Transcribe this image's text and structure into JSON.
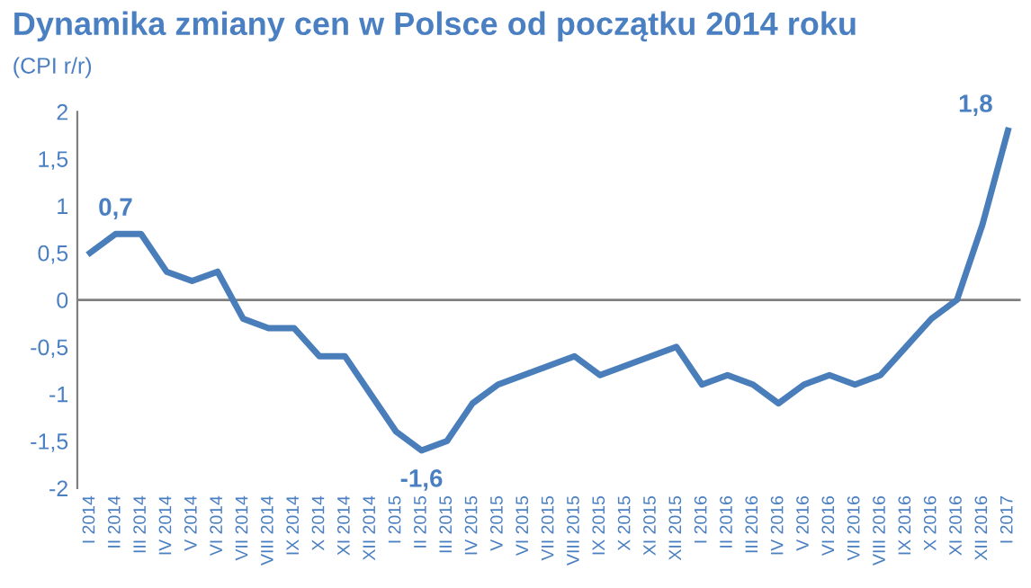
{
  "chart_data": {
    "type": "line",
    "title": "Dynamika zmiany cen w Polsce od początku 2014 roku",
    "subtitle": "(CPI r/r)",
    "categories": [
      "I 2014",
      "II 2014",
      "III 2014",
      "IV 2014",
      "V 2014",
      "VI 2014",
      "VII 2014",
      "VIII 2014",
      "IX 2014",
      "X 2014",
      "XI 2014",
      "XII 2014",
      "I 2015",
      "II 2015",
      "III 2015",
      "IV 2015",
      "V 2015",
      "VI 2015",
      "VII 2015",
      "VIII 2015",
      "IX 2015",
      "X 2015",
      "XI 2015",
      "XII 2015",
      "I 2016",
      "II 2016",
      "III 2016",
      "IV 2016",
      "V 2016",
      "VI 2016",
      "VII 2016",
      "VIII 2016",
      "IX 2016",
      "X 2016",
      "XI 2016",
      "XII 2016",
      "I 2017"
    ],
    "series": [
      {
        "color": "#4a7ebb",
        "values": [
          0.5,
          0.7,
          0.7,
          0.3,
          0.2,
          0.3,
          -0.2,
          -0.3,
          -0.3,
          -0.6,
          -0.6,
          -1.0,
          -1.4,
          -1.6,
          -1.5,
          -1.1,
          -0.9,
          -0.8,
          -0.7,
          -0.6,
          -0.8,
          -0.7,
          -0.6,
          -0.5,
          -0.9,
          -0.8,
          -0.9,
          -1.1,
          -0.9,
          -0.8,
          -0.9,
          -0.8,
          -0.5,
          -0.2,
          0.0,
          0.8,
          1.8
        ]
      }
    ],
    "ylim": [
      -2,
      2
    ],
    "yticks": [
      -2,
      {
        "value": -1.5,
        "label": "-1,5"
      },
      -1,
      {
        "value": -0.5,
        "label": "-0,5"
      },
      0,
      {
        "value": 0.5,
        "label": "0,5"
      },
      1,
      {
        "value": 1.5,
        "label": "1,5"
      },
      2
    ],
    "annotations": [
      {
        "text": "0,7",
        "x": "II 2014",
        "y": 0.7
      },
      {
        "text": "-1,6",
        "x": "II 2015",
        "y": -1.6
      },
      {
        "text": "1,8",
        "x": "I 2017",
        "y": 1.8
      }
    ],
    "ref_lines": [
      {
        "axis": "y",
        "value": 0,
        "color": "#808080"
      }
    ],
    "grid": false,
    "legend": false,
    "marker": "none",
    "line_style": "solid"
  }
}
